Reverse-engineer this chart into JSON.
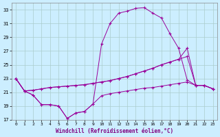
{
  "xlabel": "Windchill (Refroidissement éolien,°C)",
  "bg_color": "#cceeff",
  "grid_color": "#aacccc",
  "line_color": "#990099",
  "xlim": [
    -0.5,
    23.5
  ],
  "ylim": [
    17,
    34
  ],
  "yticks": [
    17,
    19,
    21,
    23,
    25,
    27,
    29,
    31,
    33
  ],
  "xticks": [
    0,
    1,
    2,
    3,
    4,
    5,
    6,
    7,
    8,
    9,
    10,
    11,
    12,
    13,
    14,
    15,
    16,
    17,
    18,
    19,
    20,
    21,
    22,
    23
  ],
  "series": [
    {
      "x": [
        0,
        1,
        2,
        3,
        4,
        5,
        6,
        7,
        8,
        9,
        10,
        11,
        12,
        13,
        14,
        15,
        16,
        17,
        18,
        19,
        20,
        21,
        22,
        23
      ],
      "y": [
        23.0,
        21.2,
        20.6,
        19.2,
        19.2,
        19.0,
        17.2,
        18.0,
        18.2,
        19.3,
        28.0,
        31.0,
        32.5,
        32.8,
        33.2,
        33.3,
        32.5,
        31.8,
        29.5,
        27.4,
        22.8,
        22.0,
        22.0,
        21.5
      ]
    },
    {
      "x": [
        0,
        1,
        2,
        3,
        4,
        5,
        6,
        7,
        8,
        9,
        10,
        11,
        12,
        13,
        14,
        15,
        16,
        17,
        18,
        19,
        20,
        21,
        22,
        23
      ],
      "y": [
        23.0,
        21.2,
        21.3,
        21.5,
        21.7,
        21.8,
        21.9,
        22.0,
        22.1,
        22.3,
        22.5,
        22.7,
        23.0,
        23.3,
        23.7,
        24.1,
        24.5,
        25.0,
        25.4,
        25.8,
        27.4,
        22.0,
        22.0,
        21.5
      ]
    },
    {
      "x": [
        0,
        1,
        2,
        3,
        4,
        5,
        6,
        7,
        8,
        9,
        10,
        11,
        12,
        13,
        14,
        15,
        16,
        17,
        18,
        19,
        20,
        21,
        22,
        23
      ],
      "y": [
        23.0,
        21.2,
        21.3,
        21.5,
        21.7,
        21.8,
        21.9,
        22.0,
        22.1,
        22.3,
        22.5,
        22.7,
        23.0,
        23.3,
        23.7,
        24.1,
        24.5,
        25.0,
        25.4,
        25.8,
        26.2,
        22.0,
        22.0,
        21.5
      ]
    },
    {
      "x": [
        0,
        1,
        2,
        3,
        4,
        5,
        6,
        7,
        8,
        9,
        10,
        11,
        12,
        13,
        14,
        15,
        16,
        17,
        18,
        19,
        20,
        21,
        22,
        23
      ],
      "y": [
        23.0,
        21.2,
        20.6,
        19.2,
        19.2,
        19.0,
        17.2,
        18.0,
        18.2,
        19.3,
        20.5,
        20.8,
        21.0,
        21.2,
        21.4,
        21.6,
        21.7,
        21.9,
        22.1,
        22.3,
        22.5,
        22.0,
        22.0,
        21.5
      ]
    }
  ]
}
